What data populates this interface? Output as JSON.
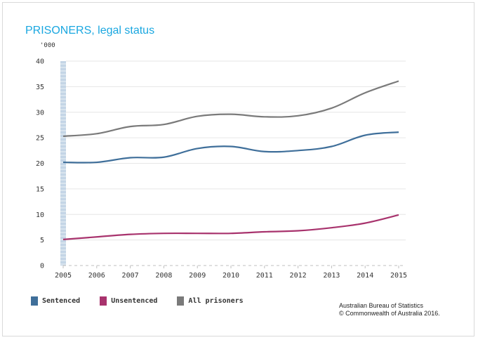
{
  "chart_data": {
    "type": "line",
    "title": "PRISONERS, legal status",
    "unit_label": "'000",
    "x": [
      "2005",
      "2006",
      "2007",
      "2008",
      "2009",
      "2010",
      "2011",
      "2012",
      "2013",
      "2014",
      "2015"
    ],
    "ylim": [
      0,
      40
    ],
    "yticks": [
      "0",
      "5",
      "10",
      "15",
      "20",
      "25",
      "30",
      "35",
      "40"
    ],
    "ytick_values": [
      0,
      5,
      10,
      15,
      20,
      25,
      30,
      35,
      40
    ],
    "series": [
      {
        "name": "Sentenced",
        "color": "#3f6f9a",
        "values": [
          20.2,
          20.2,
          21.1,
          21.2,
          22.9,
          23.3,
          22.3,
          22.5,
          23.3,
          25.5,
          26.1
        ]
      },
      {
        "name": "Unsentenced",
        "color": "#a8336d",
        "values": [
          5.1,
          5.6,
          6.1,
          6.3,
          6.3,
          6.3,
          6.6,
          6.8,
          7.4,
          8.3,
          9.9
        ]
      },
      {
        "name": "All prisoners",
        "color": "#7a7a7a",
        "values": [
          25.3,
          25.8,
          27.2,
          27.6,
          29.2,
          29.6,
          29.1,
          29.3,
          30.8,
          33.8,
          36.1
        ]
      }
    ],
    "grid": true,
    "legend_position": "bottom-left"
  },
  "source": {
    "line1": "Australian Bureau of Statistics",
    "line2": "© Commonwealth of Australia 2016."
  }
}
